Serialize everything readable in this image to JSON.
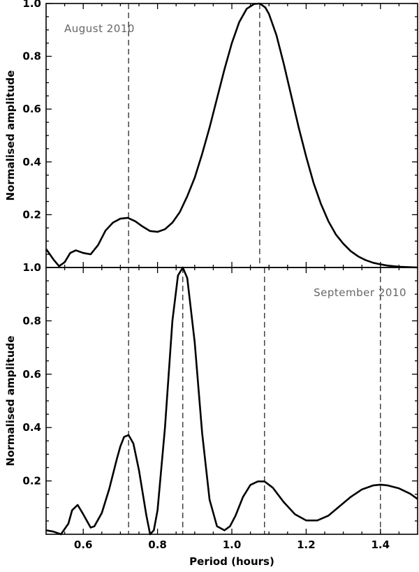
{
  "chart_data": [
    {
      "type": "line",
      "annotation": "August 2010",
      "ylabel": "Normalised amplitude",
      "xlabel": "",
      "xlim": [
        0.5,
        1.5
      ],
      "ylim": [
        0,
        1.0
      ],
      "yticks": [
        "0.2",
        "0.4",
        "0.6",
        "0.8",
        "1.0"
      ],
      "ytick_values": [
        0.2,
        0.4,
        0.6,
        0.8,
        1.0
      ],
      "dashed_lines_x": [
        0.722,
        1.075
      ],
      "series": [
        {
          "x": [
            0.5,
            0.52,
            0.535,
            0.55,
            0.565,
            0.58,
            0.6,
            0.62,
            0.64,
            0.66,
            0.68,
            0.7,
            0.72,
            0.74,
            0.76,
            0.78,
            0.8,
            0.82,
            0.84,
            0.86,
            0.88,
            0.9,
            0.92,
            0.94,
            0.96,
            0.98,
            1.0,
            1.02,
            1.04,
            1.06,
            1.075,
            1.09,
            1.1,
            1.12,
            1.14,
            1.16,
            1.18,
            1.2,
            1.22,
            1.24,
            1.26,
            1.28,
            1.3,
            1.32,
            1.34,
            1.36,
            1.38,
            1.4,
            1.42,
            1.45,
            1.5
          ],
          "y": [
            0.07,
            0.03,
            0.005,
            0.02,
            0.055,
            0.065,
            0.055,
            0.05,
            0.085,
            0.14,
            0.17,
            0.185,
            0.188,
            0.175,
            0.155,
            0.138,
            0.135,
            0.145,
            0.17,
            0.21,
            0.27,
            0.34,
            0.43,
            0.53,
            0.64,
            0.75,
            0.85,
            0.93,
            0.98,
            0.998,
            1.0,
            0.985,
            0.96,
            0.88,
            0.77,
            0.65,
            0.53,
            0.42,
            0.32,
            0.24,
            0.175,
            0.125,
            0.09,
            0.062,
            0.042,
            0.028,
            0.018,
            0.012,
            0.007,
            0.003,
            0.0
          ]
        }
      ]
    },
    {
      "type": "line",
      "annotation": "September 2010",
      "ylabel": "Normalised amplitude",
      "xlabel": "Period (hours)",
      "xlim": [
        0.5,
        1.5
      ],
      "ylim": [
        0,
        1.0
      ],
      "xticks": [
        "0.6",
        "0.8",
        "1.0",
        "1.2",
        "1.4"
      ],
      "xtick_values": [
        0.6,
        0.8,
        1.0,
        1.2,
        1.4
      ],
      "yticks": [
        "0.2",
        "0.4",
        "0.6",
        "0.8",
        "1.0"
      ],
      "ytick_values": [
        0.2,
        0.4,
        0.6,
        0.8,
        1.0
      ],
      "dashed_lines_x": [
        0.722,
        0.868,
        1.088,
        1.4
      ],
      "series": [
        {
          "x": [
            0.5,
            0.52,
            0.54,
            0.56,
            0.57,
            0.585,
            0.6,
            0.62,
            0.63,
            0.65,
            0.67,
            0.69,
            0.7,
            0.71,
            0.722,
            0.735,
            0.75,
            0.77,
            0.78,
            0.79,
            0.8,
            0.82,
            0.84,
            0.855,
            0.868,
            0.88,
            0.9,
            0.92,
            0.94,
            0.96,
            0.98,
            0.995,
            1.01,
            1.03,
            1.05,
            1.07,
            1.088,
            1.11,
            1.14,
            1.17,
            1.2,
            1.23,
            1.26,
            1.29,
            1.32,
            1.35,
            1.38,
            1.4,
            1.42,
            1.45,
            1.48,
            1.5
          ],
          "y": [
            0.015,
            0.01,
            0.0,
            0.04,
            0.09,
            0.11,
            0.075,
            0.025,
            0.03,
            0.08,
            0.17,
            0.28,
            0.33,
            0.365,
            0.372,
            0.34,
            0.24,
            0.07,
            0.0,
            0.015,
            0.09,
            0.4,
            0.8,
            0.97,
            1.0,
            0.96,
            0.72,
            0.38,
            0.13,
            0.03,
            0.015,
            0.03,
            0.07,
            0.14,
            0.185,
            0.198,
            0.198,
            0.175,
            0.12,
            0.075,
            0.052,
            0.052,
            0.07,
            0.105,
            0.14,
            0.168,
            0.183,
            0.186,
            0.183,
            0.172,
            0.152,
            0.132
          ]
        }
      ]
    }
  ]
}
